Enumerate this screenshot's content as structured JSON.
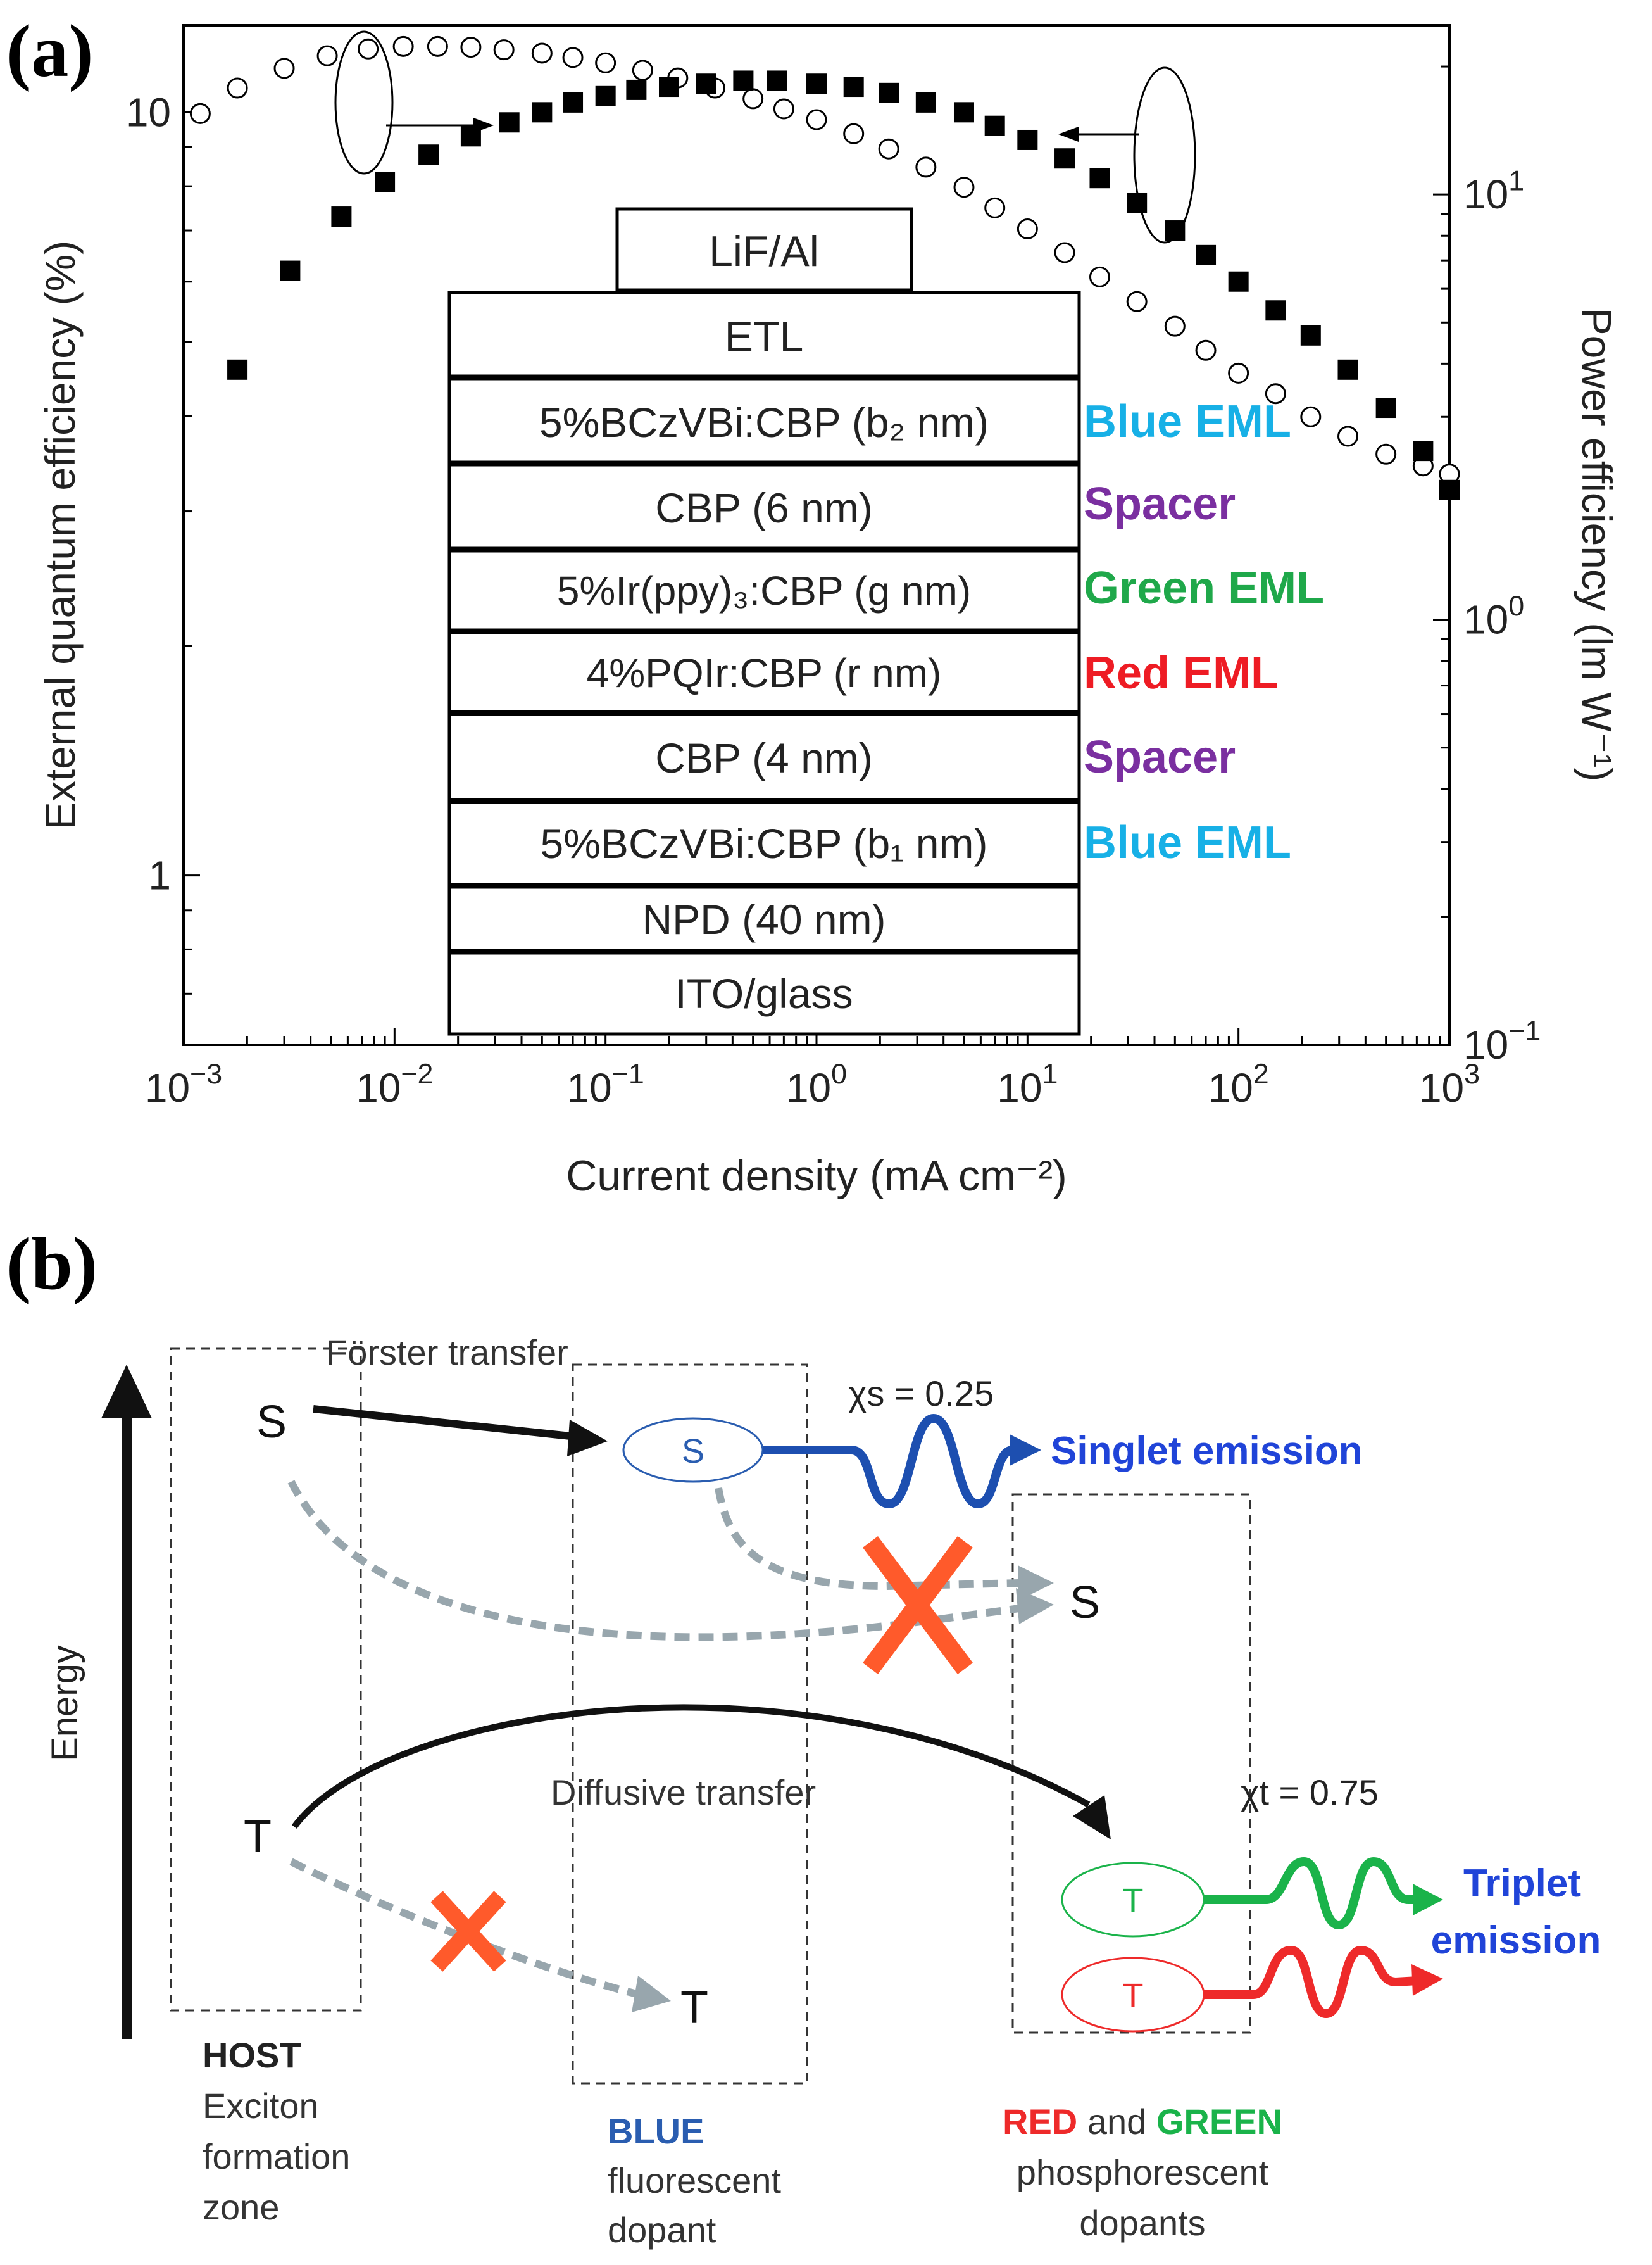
{
  "panel_a": {
    "label": "(a)",
    "stack": {
      "layers": [
        {
          "label": "LiF/Al"
        },
        {
          "label": "ETL"
        },
        {
          "label": "5%BCzVBi:CBP (b₂ nm)",
          "emission": "Blue EML"
        },
        {
          "label": "CBP (6 nm)",
          "emission": "Spacer"
        },
        {
          "label": "5%Ir(ppy)₃:CBP (g nm)",
          "emission": "Green EML"
        },
        {
          "label": "4%PQIr:CBP (r nm)",
          "emission": "Red EML"
        },
        {
          "label": "CBP (4 nm)",
          "emission": "Spacer"
        },
        {
          "label": "5%BCzVBi:CBP (b₁ nm)",
          "emission": "Blue EML"
        },
        {
          "label": "NPD (40 nm)"
        },
        {
          "label": "ITO/glass"
        }
      ]
    },
    "colors": {
      "blue": "#17b0e6",
      "purple": "#7a2fa0",
      "green": "#1fa84a",
      "red": "#ee1c24"
    }
  },
  "chart_data": {
    "type": "scatter",
    "title": "",
    "xlabel": "Current density (mA cm⁻²)",
    "ylabel": "External quantum efficiency (%)",
    "y2label": "Power efficiency (lm W⁻¹)",
    "xscale": "log",
    "yscale": "log",
    "y2scale": "log",
    "xlim": [
      0.001,
      1000
    ],
    "ylim": [
      0.6,
      13
    ],
    "y2lim": [
      0.1,
      25
    ],
    "x_ticks": [
      {
        "v": 0.001,
        "m": "10",
        "e": "−3"
      },
      {
        "v": 0.01,
        "m": "10",
        "e": "−2"
      },
      {
        "v": 0.1,
        "m": "10",
        "e": "−1"
      },
      {
        "v": 1,
        "m": "10",
        "e": "0"
      },
      {
        "v": 10,
        "m": "10",
        "e": "1"
      },
      {
        "v": 100,
        "m": "10",
        "e": "2"
      },
      {
        "v": 1000,
        "m": "10",
        "e": "3"
      }
    ],
    "y_ticks": [
      {
        "v": 1,
        "label": "1"
      },
      {
        "v": 10,
        "label": "10"
      }
    ],
    "y2_ticks": [
      {
        "v": 0.1,
        "m": "10",
        "e": "−1"
      },
      {
        "v": 1,
        "m": "10",
        "e": "0"
      },
      {
        "v": 10,
        "m": "10",
        "e": "1"
      }
    ],
    "series": [
      {
        "name": "External quantum efficiency",
        "marker": "filled-square",
        "axis": "left",
        "x": [
          0.0018,
          0.0032,
          0.0056,
          0.009,
          0.0145,
          0.023,
          0.035,
          0.05,
          0.07,
          0.1,
          0.14,
          0.2,
          0.3,
          0.45,
          0.65,
          1,
          1.5,
          2.2,
          3.3,
          5,
          7,
          10,
          15,
          22,
          33,
          50,
          70,
          100,
          150,
          220,
          330,
          500,
          750,
          1000
        ],
        "y": [
          4.6,
          6.2,
          7.3,
          8.1,
          8.8,
          9.3,
          9.7,
          10.0,
          10.3,
          10.5,
          10.7,
          10.8,
          10.9,
          11.0,
          11.0,
          10.9,
          10.8,
          10.6,
          10.3,
          10.0,
          9.6,
          9.2,
          8.7,
          8.2,
          7.6,
          7.0,
          6.5,
          6.0,
          5.5,
          5.1,
          4.6,
          4.1,
          3.6,
          3.2
        ]
      },
      {
        "name": "Power efficiency",
        "marker": "open-circle",
        "axis": "right",
        "x": [
          0.0012,
          0.0018,
          0.003,
          0.0048,
          0.0075,
          0.011,
          0.016,
          0.023,
          0.033,
          0.05,
          0.07,
          0.1,
          0.15,
          0.22,
          0.33,
          0.5,
          0.7,
          1,
          1.5,
          2.2,
          3.3,
          5,
          7,
          10,
          15,
          22,
          33,
          50,
          70,
          100,
          150,
          220,
          330,
          500,
          750,
          1000
        ],
        "y": [
          15.5,
          17.8,
          19.8,
          21.2,
          22.0,
          22.3,
          22.3,
          22.2,
          21.9,
          21.5,
          21.0,
          20.4,
          19.6,
          18.8,
          17.8,
          16.8,
          15.9,
          15.0,
          13.9,
          12.8,
          11.6,
          10.4,
          9.3,
          8.3,
          7.3,
          6.4,
          5.6,
          4.9,
          4.3,
          3.8,
          3.4,
          3.0,
          2.7,
          2.45,
          2.3,
          2.2
        ]
      }
    ],
    "annotations": [
      "left-pointing arrow from ellipse on squares: EQE (left axis)",
      "right-pointing arrow from ellipse on circles: power efficiency (right axis)"
    ]
  },
  "panel_b": {
    "label": "(b)",
    "energy_label": "Energy",
    "forster": "Förster transfer",
    "diffusive": "Diffusive transfer",
    "chi_s": "χs = 0.25",
    "chi_t": "χt = 0.75",
    "singlet_emission": "Singlet emission",
    "triplet_emission_1": "Triplet",
    "triplet_emission_2": "emission",
    "state_S": "S",
    "state_T": "T",
    "host_title": "HOST",
    "host_lines": [
      "Exciton",
      "formation",
      "zone"
    ],
    "blue_title": "BLUE",
    "blue_lines": [
      "fluorescent",
      "dopant"
    ],
    "red_word": "RED",
    "and_word": " and ",
    "green_word": "GREEN",
    "rg_lines": [
      "phosphorescent",
      "dopants"
    ],
    "colors": {
      "blue_text": "#2044d8",
      "blue_label": "#2a5db0",
      "green": "#1ab34a",
      "red": "#ee2a2a",
      "orange_x": "#ff5a2b",
      "gray_dash": "#98a6ad"
    }
  }
}
